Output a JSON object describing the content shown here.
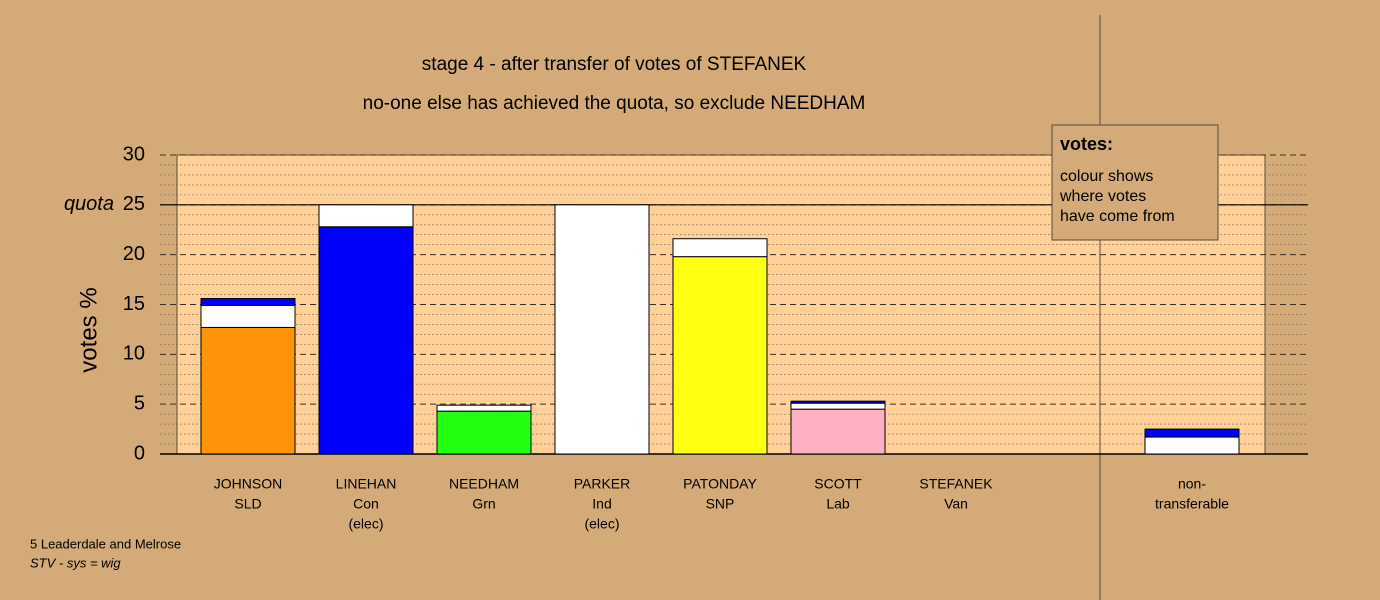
{
  "chart_data": {
    "type": "bar",
    "stacked": true,
    "title": "stage 4 - after transfer of votes of STEFANEK",
    "subtitle": "no-one else has achieved the quota, so exclude NEEDHAM",
    "y_label": "votes %",
    "categories": [
      [
        "JOHNSON",
        "SLD"
      ],
      [
        "LINEHAN",
        "Con",
        "(elec)"
      ],
      [
        "NEEDHAM",
        "Grn"
      ],
      [
        "PARKER",
        "Ind",
        "(elec)"
      ],
      [
        "PATONDAY",
        "SNP"
      ],
      [
        "SCOTT",
        "Lab"
      ],
      [
        "STEFANEK",
        "Van"
      ],
      [
        "non-",
        "transferable"
      ]
    ],
    "series": [
      {
        "colors": [
          "#ff9408",
          "#0000ff",
          "#22ff11",
          "#ffffff",
          "#ffff11",
          "#ffb0c0",
          "#ffffff",
          "#ffffff"
        ],
        "values": [
          12.7,
          22.8,
          4.3,
          25,
          19.8,
          4.5,
          0,
          0
        ]
      },
      {
        "color": "#ffffff",
        "values": [
          2.2,
          2.2,
          0.6,
          0,
          1.8,
          0.6,
          0,
          1.7
        ]
      },
      {
        "color": "#0000ff",
        "values": [
          0.7,
          0,
          0,
          0,
          0,
          0.2,
          0,
          0.8
        ]
      }
    ],
    "ylim": [
      0,
      30
    ],
    "yticks": [
      0,
      5,
      10,
      15,
      20,
      25,
      30
    ],
    "quota": {
      "label": "quota",
      "value": 25
    },
    "legend": {
      "title": "votes:",
      "lines": [
        "colour shows",
        "where votes",
        "have come from"
      ]
    },
    "footer": [
      "5 Leaderdale and Melrose",
      "STV - sys = wig"
    ]
  }
}
